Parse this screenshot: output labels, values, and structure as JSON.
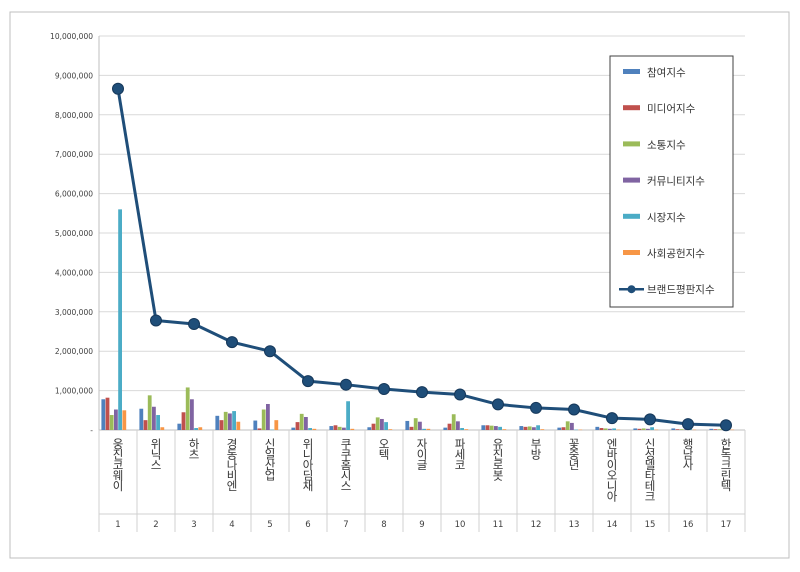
{
  "chart_data": {
    "type": "bar+line",
    "categories": [
      "웅진코웨이",
      "위닉스",
      "하츠",
      "경동나비엔",
      "신일산업",
      "위니아딤채",
      "쿠쿠홈시스",
      "오텍",
      "자이글",
      "파세코",
      "유진로봇",
      "부방",
      "꽃중년",
      "엔바이오니아",
      "신성델타테크",
      "행남사",
      "한독크린텍"
    ],
    "ranks": [
      "1",
      "2",
      "3",
      "4",
      "5",
      "6",
      "7",
      "8",
      "9",
      "10",
      "11",
      "12",
      "13",
      "14",
      "15",
      "16",
      "17"
    ],
    "y_ticks": [
      "10,000,000",
      "9,000,000",
      "8,000,000",
      "7,000,000",
      "6,000,000",
      "5,000,000",
      "4,000,000",
      "3,000,000",
      "2,000,000",
      "1,000,000",
      "-"
    ],
    "ylim": [
      0,
      10000000
    ],
    "legend_position": "top-right",
    "series": [
      {
        "name": "참여지수",
        "type": "bar",
        "color": "#4F81BD",
        "values": [
          780000,
          540000,
          160000,
          360000,
          240000,
          60000,
          100000,
          70000,
          230000,
          60000,
          120000,
          100000,
          60000,
          80000,
          40000,
          40000,
          30000
        ]
      },
      {
        "name": "미디어지수",
        "type": "bar",
        "color": "#C0504D",
        "values": [
          820000,
          250000,
          450000,
          250000,
          40000,
          200000,
          120000,
          160000,
          80000,
          160000,
          120000,
          80000,
          70000,
          50000,
          30000,
          20000,
          20000
        ]
      },
      {
        "name": "소통지수",
        "type": "bar",
        "color": "#9BBB59",
        "values": [
          380000,
          880000,
          1080000,
          460000,
          520000,
          410000,
          80000,
          320000,
          300000,
          400000,
          110000,
          90000,
          220000,
          40000,
          40000,
          20000,
          20000
        ]
      },
      {
        "name": "커뮤니티지수",
        "type": "bar",
        "color": "#8064A2",
        "values": [
          520000,
          590000,
          780000,
          420000,
          660000,
          330000,
          60000,
          280000,
          210000,
          220000,
          100000,
          70000,
          180000,
          30000,
          30000,
          15000,
          15000
        ]
      },
      {
        "name": "시장지수",
        "type": "bar",
        "color": "#4BACC6",
        "values": [
          5600000,
          380000,
          50000,
          480000,
          10000,
          50000,
          730000,
          200000,
          30000,
          50000,
          80000,
          120000,
          10000,
          40000,
          70000,
          40000,
          20000
        ]
      },
      {
        "name": "사회공헌지수",
        "type": "bar",
        "color": "#F79646",
        "values": [
          500000,
          70000,
          70000,
          210000,
          250000,
          30000,
          30000,
          20000,
          30000,
          20000,
          20000,
          20000,
          10000,
          10000,
          10000,
          10000,
          10000
        ]
      },
      {
        "name": "브랜드평판지수",
        "type": "line",
        "color": "#1F4E79",
        "values": [
          8660000,
          2780000,
          2690000,
          2230000,
          2000000,
          1240000,
          1150000,
          1040000,
          960000,
          900000,
          650000,
          560000,
          520000,
          300000,
          270000,
          150000,
          120000
        ]
      }
    ]
  }
}
